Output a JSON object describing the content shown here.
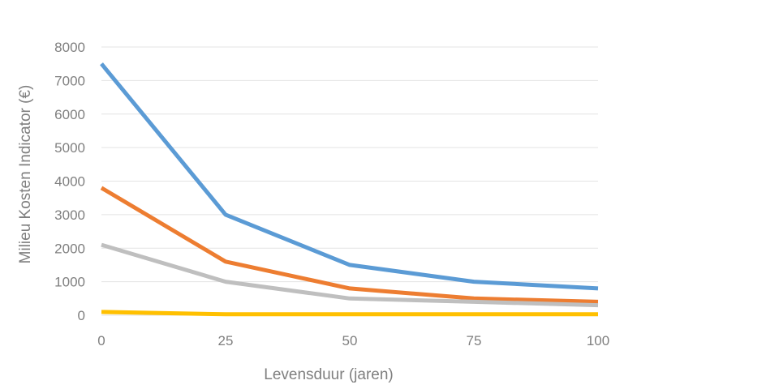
{
  "chart_data": {
    "type": "line",
    "title": "",
    "xlabel": "Levensduur (jaren)",
    "ylabel": "Milieu Kosten Indicator (€)",
    "x": [
      0,
      25,
      50,
      75,
      100
    ],
    "xlim": [
      0,
      100
    ],
    "ylim": [
      0,
      8000
    ],
    "xticks": [
      0,
      25,
      50,
      75,
      100
    ],
    "yticks": [
      0,
      1000,
      2000,
      3000,
      4000,
      5000,
      6000,
      7000,
      8000
    ],
    "grid": true,
    "legend": "none",
    "series": [
      {
        "color": "#5b9bd5",
        "values": [
          7500,
          3000,
          1500,
          1000,
          800
        ]
      },
      {
        "color": "#ed7d31",
        "values": [
          3800,
          1600,
          800,
          500,
          400
        ]
      },
      {
        "color": "#bfbfbf",
        "values": [
          2100,
          1000,
          500,
          400,
          300
        ]
      },
      {
        "color": "#ffc000",
        "values": [
          100,
          30,
          30,
          30,
          30
        ]
      }
    ]
  }
}
